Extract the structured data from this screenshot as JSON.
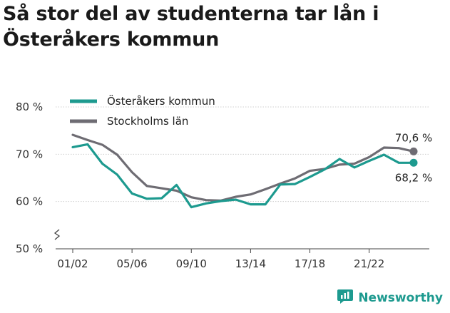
{
  "title": "Så stor del av studenterna tar lån i Österåkers kommun",
  "brand": {
    "name": "Newsworthy",
    "icon": "newsworthy-logo-icon",
    "color": "#1d9a8f"
  },
  "chart_data": {
    "type": "line",
    "title": "Så stor del av studenterna tar lån i Österåkers kommun",
    "xlabel": "",
    "ylabel": "",
    "ylim": [
      50,
      80
    ],
    "y_axis_break": true,
    "grid": "horizontal",
    "legend_position": "top-left",
    "y_ticks": [
      "50 %",
      "60 %",
      "70 %",
      "80 %"
    ],
    "y_tick_values": [
      50,
      60,
      70,
      80
    ],
    "x_tick_labels": [
      "01/02",
      "05/06",
      "09/10",
      "13/14",
      "17/18",
      "21/22"
    ],
    "x_tick_indices": [
      0,
      4,
      8,
      12,
      16,
      20
    ],
    "x": [
      "01/02",
      "02/03",
      "03/04",
      "04/05",
      "05/06",
      "06/07",
      "07/08",
      "08/09",
      "09/10",
      "10/11",
      "11/12",
      "12/13",
      "13/14",
      "14/15",
      "15/16",
      "16/17",
      "17/18",
      "18/19",
      "19/20",
      "20/21",
      "21/22",
      "22/23",
      "23/24",
      "24/25"
    ],
    "series": [
      {
        "name": "Österåkers kommun",
        "color": "#1d9a8f",
        "values": [
          71.5,
          72.1,
          68.0,
          65.7,
          61.7,
          60.6,
          60.7,
          63.5,
          58.8,
          59.6,
          60.1,
          60.4,
          59.4,
          59.4,
          63.6,
          63.7,
          65.2,
          66.8,
          69.0,
          67.2,
          68.6,
          69.9,
          68.2,
          68.2
        ],
        "end_label": "68,2 %"
      },
      {
        "name": "Stockholms län",
        "color": "#6e6c73",
        "values": [
          74.1,
          73.0,
          72.0,
          69.9,
          66.2,
          63.3,
          62.8,
          62.3,
          60.9,
          60.3,
          60.2,
          61.0,
          61.5,
          62.6,
          63.8,
          64.9,
          66.5,
          66.9,
          67.8,
          68.0,
          69.4,
          71.4,
          71.3,
          70.6
        ],
        "end_label": "70,6 %"
      }
    ]
  }
}
